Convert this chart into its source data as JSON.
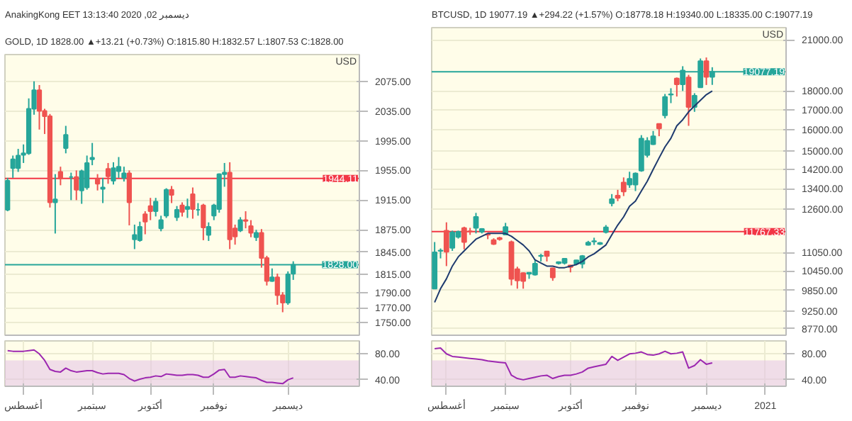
{
  "chart_data": [
    {
      "type": "candlestick",
      "title": "AnakingKong EET 13:13:40 2020 ,02 ديسمبر",
      "subtitle": "GOLD, 1D 1828.00 ▲+13.21 (+0.73%) O:1815.80 H:1832.57 L:1807.53 C:1828.00",
      "ylabel": "USD",
      "categories": [
        null,
        null,
        null,
        null,
        null,
        null,
        null,
        null,
        null,
        null,
        null,
        null,
        null,
        null,
        null,
        null,
        null,
        null,
        null,
        null,
        null,
        null,
        null,
        null,
        null,
        null,
        null,
        null,
        null,
        null,
        null,
        null,
        null,
        null,
        null,
        null,
        null,
        null,
        null,
        null,
        null,
        null,
        null,
        null,
        null,
        null,
        null,
        null,
        null,
        null,
        null,
        null,
        null,
        null,
        null,
        null,
        null,
        null,
        null,
        null,
        null,
        null,
        null,
        null,
        null,
        null,
        null
      ],
      "ohlc": [
        [
          1902,
          1945,
          1900,
          1941
        ],
        [
          1958,
          1975,
          1945,
          1970
        ],
        [
          1958,
          1984,
          1953,
          1975
        ],
        [
          1976,
          1990,
          1965,
          1978
        ],
        [
          1978,
          2052,
          1976,
          2038
        ],
        [
          2038,
          2075,
          2030,
          2063
        ],
        [
          2063,
          2070,
          2010,
          2035
        ],
        [
          2035,
          2038,
          2004,
          2028
        ],
        [
          2028,
          2031,
          1905,
          1912
        ],
        [
          1912,
          1950,
          1870,
          1916
        ],
        [
          1953,
          1960,
          1935,
          1944
        ],
        [
          1985,
          2015,
          1978,
          2003
        ],
        [
          1946,
          1952,
          1915,
          1946
        ],
        [
          1946,
          1955,
          1915,
          1929
        ],
        [
          1928,
          1956,
          1910,
          1954
        ],
        [
          1932,
          1975,
          1929,
          1965
        ],
        [
          1970,
          1992,
          1962,
          1972
        ],
        [
          1943,
          1950,
          1928,
          1937
        ],
        [
          1930,
          1945,
          1911,
          1932
        ],
        [
          1957,
          1965,
          1937,
          1947
        ],
        [
          1941,
          1966,
          1936,
          1958
        ],
        [
          1954,
          1973,
          1945,
          1960
        ],
        [
          1945,
          1960,
          1940,
          1951
        ],
        [
          1951,
          1955,
          1881,
          1912
        ],
        [
          1862,
          1882,
          1849,
          1868
        ],
        [
          1861,
          1886,
          1859,
          1879
        ],
        [
          1896,
          1900,
          1869,
          1886
        ],
        [
          1907,
          1918,
          1888,
          1900
        ],
        [
          1900,
          1918,
          1893,
          1913
        ],
        [
          1877,
          1894,
          1873,
          1888
        ],
        [
          1894,
          1931,
          1891,
          1929
        ],
        [
          1929,
          1934,
          1911,
          1922
        ],
        [
          1892,
          1907,
          1887,
          1902
        ],
        [
          1908,
          1912,
          1893,
          1899
        ],
        [
          1903,
          1917,
          1891,
          1906
        ],
        [
          1923,
          1932,
          1890,
          1903
        ],
        [
          1902,
          1911,
          1894,
          1902
        ],
        [
          1908,
          1910,
          1861,
          1878
        ],
        [
          1868,
          1885,
          1860,
          1879
        ],
        [
          1894,
          1910,
          1888,
          1908
        ],
        [
          1903,
          1951,
          1898,
          1950
        ],
        [
          1950,
          1965,
          1933,
          1952
        ],
        [
          1952,
          1966,
          1849,
          1862
        ],
        [
          1877,
          1882,
          1855,
          1866
        ],
        [
          1874,
          1892,
          1872,
          1888
        ],
        [
          1888,
          1900,
          1877,
          1887
        ],
        [
          1880,
          1888,
          1865,
          1871
        ],
        [
          1865,
          1875,
          1860,
          1871
        ],
        [
          1871,
          1876,
          1824,
          1837
        ],
        [
          1837,
          1840,
          1800,
          1806
        ],
        [
          1806,
          1823,
          1805,
          1811
        ],
        [
          1811,
          1816,
          1774,
          1787
        ],
        [
          1787,
          1791,
          1764,
          1777
        ],
        [
          1777,
          1819,
          1774,
          1815
        ],
        [
          1815.8,
          1832.57,
          1807.53,
          1828.0
        ],
        null,
        null,
        null,
        null,
        null,
        null,
        null,
        null,
        null,
        null,
        null,
        null
      ],
      "ylim": [
        1733,
        2111
      ],
      "yticks": [
        {
          "value": 1750,
          "label": "1750.00"
        },
        {
          "value": 1770,
          "label": "1770.00"
        },
        {
          "value": 1790,
          "label": "1790.00"
        },
        {
          "value": 1815,
          "label": "1815.00"
        },
        {
          "value": 1845,
          "label": "1845.00"
        },
        {
          "value": 1875,
          "label": "1875.00"
        },
        {
          "value": 1915,
          "label": "1915.00"
        },
        {
          "value": 1955,
          "label": "1955.00"
        },
        {
          "value": 1995,
          "label": "1995.00"
        },
        {
          "value": 2035,
          "label": "2035.00"
        },
        {
          "value": 2075,
          "label": "2075.00"
        }
      ],
      "ref_lines": [
        {
          "axis": "y",
          "value": 1944.11,
          "label": "1944.11",
          "color": "#f23645"
        },
        {
          "axis": "y",
          "value": 1828.0,
          "label": "1828.00",
          "color": "#26a69a"
        }
      ],
      "grid": "y",
      "tick_labels": "y"
    },
    {
      "type": "line",
      "categories": [
        null,
        null,
        null,
        "أغسطس",
        null,
        null,
        null,
        null,
        null,
        null,
        null,
        null,
        null,
        null,
        null,
        null,
        "سبتمبر",
        null,
        null,
        null,
        null,
        null,
        null,
        null,
        null,
        null,
        null,
        "أكتوبر",
        null,
        null,
        null,
        null,
        null,
        null,
        null,
        null,
        null,
        null,
        null,
        "نوفمبر",
        null,
        null,
        null,
        null,
        null,
        null,
        null,
        null,
        null,
        null,
        null,
        null,
        null,
        "ديسمبر",
        null,
        null,
        null,
        null,
        null,
        null,
        null,
        null,
        null,
        null,
        null,
        null,
        null
      ],
      "series": [
        {
          "color": "#9c27b0",
          "values": [
            85,
            84,
            84,
            84,
            85,
            86,
            80,
            70,
            56,
            53,
            52,
            58,
            54,
            52,
            53,
            54,
            54,
            51,
            49,
            50,
            50,
            50,
            48,
            42,
            38,
            41,
            43,
            44,
            46,
            45,
            49,
            48,
            47,
            47,
            48,
            48,
            47,
            44,
            44,
            49,
            55,
            56,
            44,
            44,
            46,
            45,
            44,
            43,
            39,
            36,
            36,
            35,
            34,
            40,
            43,
            null,
            null,
            null,
            null,
            null,
            null,
            null,
            null,
            null,
            null,
            null,
            null
          ]
        }
      ],
      "ylim": [
        30,
        100
      ],
      "yticks": [
        {
          "value": 40,
          "label": "40.00"
        },
        {
          "value": 80,
          "label": "80.00"
        }
      ],
      "bands": [
        {
          "axis": "y",
          "from": 30,
          "to": 70,
          "color": "#e1bee7"
        }
      ],
      "grid": true
    },
    {
      "type": "candlestick",
      "subtitle": "BTCUSD, 1D 19077.19 ▲+294.22 (+1.57%) O:18778.18 H:19340.00 L:18335.00 C:19077.19",
      "ylabel": "USD",
      "log": true,
      "categories": [
        null,
        null,
        null,
        null,
        null,
        null,
        null,
        null,
        null,
        null,
        null,
        null,
        null,
        null,
        null,
        null,
        null,
        null,
        null,
        null,
        null,
        null,
        null,
        null,
        null,
        null,
        null,
        null,
        null,
        null,
        null,
        null,
        null,
        null,
        null,
        null,
        null,
        null,
        null,
        null,
        null,
        null,
        null,
        null,
        null,
        null,
        null,
        null,
        null,
        null,
        null,
        null,
        null,
        null,
        null,
        null,
        null,
        null,
        null,
        null
      ],
      "ohlc": [
        [
          9900,
          11400,
          9900,
          11050
        ],
        [
          11100,
          11180,
          10850,
          11110
        ],
        [
          11800,
          12100,
          10600,
          11070
        ],
        [
          11200,
          11800,
          11100,
          11740
        ],
        [
          11580,
          11800,
          11520,
          11760
        ],
        [
          11890,
          11940,
          11150,
          11400
        ],
        [
          11780,
          11900,
          11650,
          11770
        ],
        [
          11900,
          12450,
          11700,
          12300
        ],
        [
          11760,
          11890,
          11700,
          11860
        ],
        [
          11670,
          11700,
          11500,
          11650
        ],
        [
          11470,
          11530,
          11300,
          11330
        ],
        [
          11540,
          11580,
          11450,
          11500
        ],
        [
          11660,
          12080,
          11660,
          11930
        ],
        [
          11400,
          11450,
          10000,
          10200
        ],
        [
          10500,
          10580,
          9900,
          10150
        ],
        [
          10380,
          10400,
          9900,
          10130
        ],
        [
          10360,
          10400,
          10200,
          10390
        ],
        [
          10330,
          10820,
          10300,
          10680
        ],
        [
          10930,
          11000,
          10750,
          10940
        ],
        [
          11080,
          11080,
          10750,
          10930
        ],
        [
          10530,
          10550,
          10140,
          10240
        ],
        [
          10690,
          10750,
          10650,
          10730
        ],
        [
          10700,
          10860,
          10650,
          10840
        ],
        [
          10620,
          10640,
          10400,
          10570
        ],
        [
          10680,
          10800,
          10630,
          10790
        ],
        [
          10670,
          10960,
          10530,
          10930
        ],
        [
          11300,
          11440,
          11280,
          11380
        ],
        [
          11420,
          11550,
          11300,
          11430
        ],
        [
          11330,
          11400,
          11300,
          11370
        ],
        [
          11750,
          12000,
          11700,
          11920
        ],
        [
          12820,
          13180,
          12700,
          12980
        ],
        [
          13120,
          13350,
          12900,
          13030
        ],
        [
          13650,
          13860,
          13100,
          13280
        ],
        [
          13560,
          14100,
          13430,
          13800
        ],
        [
          13560,
          14070,
          13300,
          14030
        ],
        [
          14150,
          15750,
          14100,
          15590
        ],
        [
          14830,
          15650,
          14720,
          15480
        ],
        [
          15320,
          15950,
          15290,
          15700
        ],
        [
          16300,
          16320,
          15700,
          16070
        ],
        [
          16720,
          17840,
          16570,
          17680
        ],
        [
          17800,
          18150,
          17350,
          17820
        ],
        [
          18690,
          18750,
          17700,
          18370
        ],
        [
          18370,
          19400,
          18000,
          19150
        ],
        [
          18750,
          18900,
          16200,
          17150
        ],
        [
          17150,
          17880,
          16900,
          17750
        ],
        [
          18200,
          19860,
          18200,
          19700
        ],
        [
          19700,
          19920,
          18330,
          18780
        ],
        [
          18778.18,
          19340.0,
          18335.0,
          19077.19
        ],
        null,
        null,
        null,
        null,
        null,
        null,
        null,
        null,
        null,
        null,
        null,
        null
      ],
      "series": [
        {
          "type": "line",
          "color": "#1e3a6e",
          "values": [
            9500,
            9900,
            10200,
            10600,
            10900,
            11100,
            11300,
            11500,
            11600,
            11700,
            11700,
            11700,
            11700,
            11600,
            11450,
            11300,
            11100,
            10800,
            10700,
            10600,
            10600,
            10550,
            10550,
            10600,
            10650,
            10750,
            10900,
            11000,
            11150,
            11300,
            11650,
            12000,
            12300,
            12700,
            12900,
            13300,
            13700,
            14200,
            14700,
            15200,
            15600,
            16200,
            16500,
            16900,
            17200,
            17500,
            17800,
            18000,
            null,
            null,
            null,
            null,
            null,
            null,
            null,
            null,
            null,
            null,
            null,
            null
          ]
        }
      ],
      "ylim": [
        8600,
        21800
      ],
      "yticks": [
        {
          "value": 8770,
          "label": "8770.00"
        },
        {
          "value": 9250,
          "label": "9250.00"
        },
        {
          "value": 9850,
          "label": "9850.00"
        },
        {
          "value": 10450,
          "label": "10450.00"
        },
        {
          "value": 11050,
          "label": "11050.00"
        },
        {
          "value": 12600,
          "label": "12600.00"
        },
        {
          "value": 13400,
          "label": "13400.00"
        },
        {
          "value": 14200,
          "label": "14200.00"
        },
        {
          "value": 15000,
          "label": "15000.00"
        },
        {
          "value": 16000,
          "label": "16000.00"
        },
        {
          "value": 17000,
          "label": "17000.00"
        },
        {
          "value": 18000,
          "label": "18000.00"
        },
        {
          "value": 21000,
          "label": "21000.00"
        }
      ],
      "ref_lines": [
        {
          "axis": "y",
          "value": 11767.33,
          "label": "11767.33",
          "color": "#f23645"
        },
        {
          "axis": "y",
          "value": 19077.19,
          "label": "19077.19",
          "color": "#26a69a"
        }
      ],
      "grid": "y",
      "tick_labels": "y"
    },
    {
      "type": "line",
      "categories": [
        null,
        null,
        "أغسطس",
        null,
        null,
        null,
        null,
        null,
        null,
        null,
        null,
        null,
        "سبتمبر",
        null,
        null,
        null,
        null,
        null,
        null,
        null,
        null,
        null,
        null,
        "أكتوبر",
        null,
        null,
        null,
        null,
        null,
        null,
        null,
        null,
        null,
        null,
        "نوفمبر",
        null,
        null,
        null,
        null,
        null,
        null,
        null,
        null,
        null,
        null,
        null,
        "ديسمبر",
        null,
        null,
        null,
        null,
        null,
        null,
        null,
        null,
        null,
        "2021",
        null,
        null,
        null
      ],
      "series": [
        {
          "color": "#9c27b0",
          "values": [
            88,
            89,
            80,
            76,
            75,
            74,
            73,
            72,
            71,
            69,
            68,
            67,
            66,
            47,
            42,
            40,
            42,
            44,
            46,
            47,
            42,
            45,
            47,
            47,
            49,
            52,
            58,
            60,
            62,
            64,
            76,
            70,
            75,
            80,
            81,
            83,
            79,
            78,
            80,
            84,
            80,
            81,
            83,
            58,
            62,
            71,
            64,
            66,
            null,
            null,
            null,
            null,
            null,
            null,
            null,
            null,
            null,
            null,
            null,
            null
          ]
        }
      ],
      "ylim": [
        30,
        100
      ],
      "yticks": [
        {
          "value": 40,
          "label": "40.00"
        },
        {
          "value": 80,
          "label": "80.00"
        }
      ],
      "bands": [
        {
          "axis": "y",
          "from": 30,
          "to": 70,
          "color": "#e1bee7"
        }
      ],
      "grid": true
    }
  ]
}
